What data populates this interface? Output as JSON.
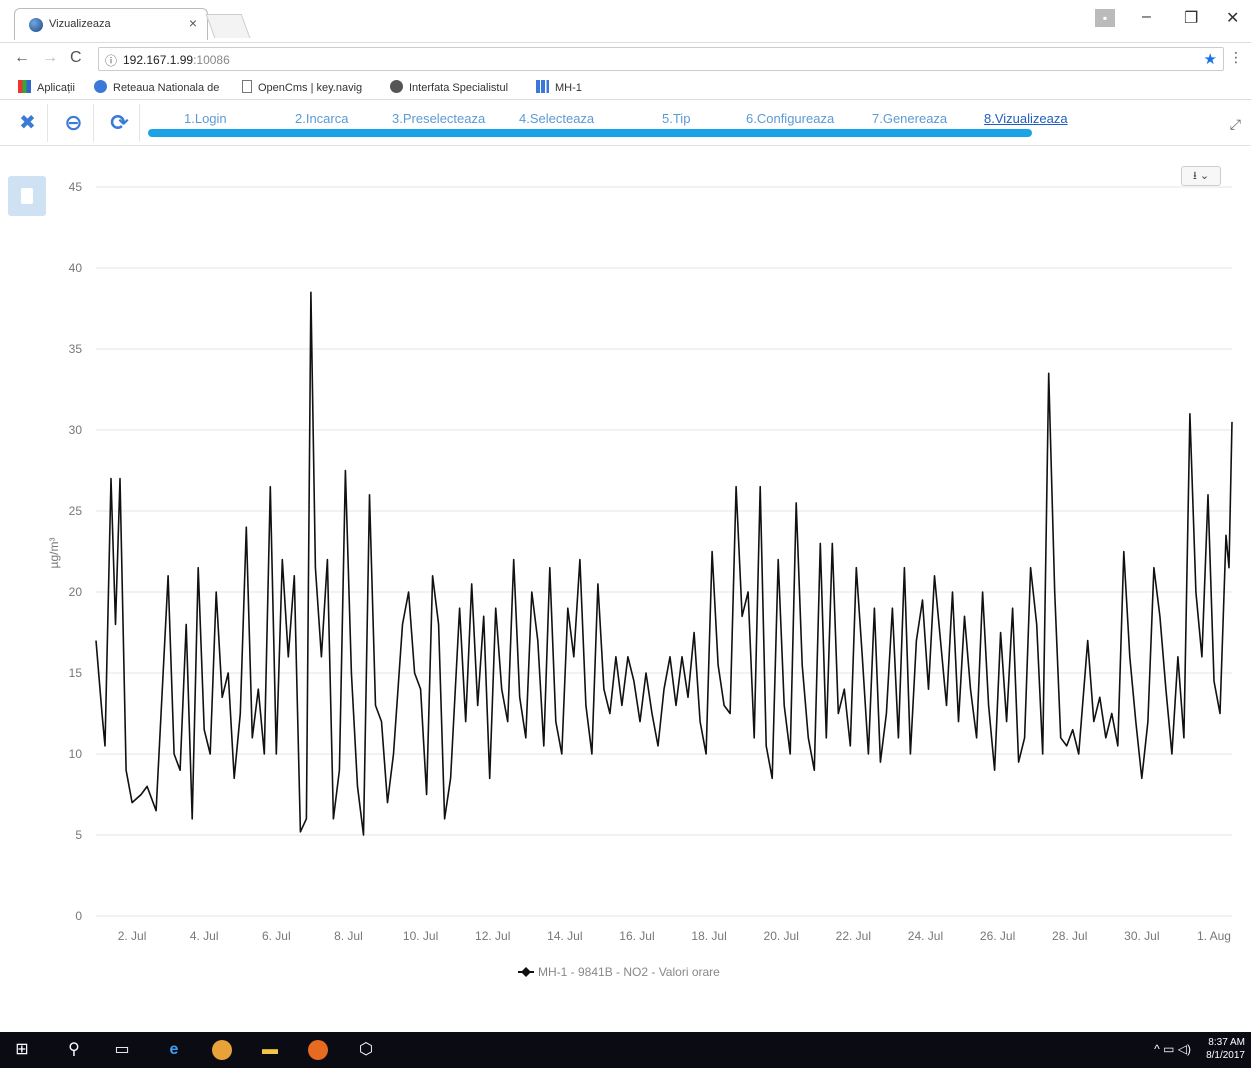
{
  "browser": {
    "tab_title": "Vizualizeaza",
    "tab_close": "×",
    "url_host": "192.167.1.99",
    "url_port": ":10086",
    "bookmarks": [
      {
        "label": "Aplicații",
        "icon": "apps-grid-icon"
      },
      {
        "label": "Reteaua Nationala de",
        "icon": "globe-icon"
      },
      {
        "label": "OpenCms | key.navig",
        "icon": "page-icon"
      },
      {
        "label": "Interfata Specialistul",
        "icon": "globe-icon"
      },
      {
        "label": "MH-1",
        "icon": "chart-icon"
      }
    ],
    "controls": {
      "minimize": "–",
      "restore": "❐",
      "close": "✕"
    }
  },
  "wizard": {
    "steps": [
      {
        "label": "1.Login"
      },
      {
        "label": "2.Incarca"
      },
      {
        "label": "3.Preselecteaza"
      },
      {
        "label": "4.Selecteaza"
      },
      {
        "label": "5.Tip"
      },
      {
        "label": "6.Configureaza"
      },
      {
        "label": "7.Genereaza"
      },
      {
        "label": "8.Vizualizeaza"
      }
    ],
    "active_step": 8
  },
  "export_label": "⭳ ⌄",
  "chart_data": {
    "type": "line",
    "ylabel": "µg/m³",
    "ylim": [
      0,
      45
    ],
    "yticks": [
      0,
      5,
      10,
      15,
      20,
      25,
      30,
      35,
      40,
      45
    ],
    "xlim": [
      "2017-07-01",
      "2017-08-01T12:00"
    ],
    "xticks": [
      "2. Jul",
      "4. Jul",
      "6. Jul",
      "8. Jul",
      "10. Jul",
      "12. Jul",
      "14. Jul",
      "16. Jul",
      "18. Jul",
      "20. Jul",
      "22. Jul",
      "24. Jul",
      "26. Jul",
      "28. Jul",
      "30. Jul",
      "1. Aug"
    ],
    "grid": true,
    "legend_position": "bottom-center",
    "series": [
      {
        "name": "MH-1 - 9841B - NO2 - Valori orare",
        "color": "#111111",
        "points": [
          [
            "2017-07-01T00:00",
            17.0
          ],
          [
            "2017-07-01T04:00",
            12.5
          ],
          [
            "2017-07-01T06:00",
            10.5
          ],
          [
            "2017-07-01T10:00",
            27.0
          ],
          [
            "2017-07-01T13:00",
            18.0
          ],
          [
            "2017-07-01T16:00",
            27.0
          ],
          [
            "2017-07-01T20:00",
            9.0
          ],
          [
            "2017-07-02T00:00",
            7.0
          ],
          [
            "2017-07-02T06:00",
            7.5
          ],
          [
            "2017-07-02T10:00",
            8.0
          ],
          [
            "2017-07-02T16:00",
            6.5
          ],
          [
            "2017-07-03T00:00",
            21.0
          ],
          [
            "2017-07-03T04:00",
            10.0
          ],
          [
            "2017-07-03T08:00",
            9.0
          ],
          [
            "2017-07-03T12:00",
            18.0
          ],
          [
            "2017-07-03T16:00",
            6.0
          ],
          [
            "2017-07-03T20:00",
            21.5
          ],
          [
            "2017-07-04T00:00",
            11.5
          ],
          [
            "2017-07-04T04:00",
            10.0
          ],
          [
            "2017-07-04T08:00",
            20.0
          ],
          [
            "2017-07-04T12:00",
            13.5
          ],
          [
            "2017-07-04T16:00",
            15.0
          ],
          [
            "2017-07-04T20:00",
            8.5
          ],
          [
            "2017-07-05T00:00",
            12.5
          ],
          [
            "2017-07-05T04:00",
            24.0
          ],
          [
            "2017-07-05T08:00",
            11.0
          ],
          [
            "2017-07-05T12:00",
            14.0
          ],
          [
            "2017-07-05T16:00",
            10.0
          ],
          [
            "2017-07-05T20:00",
            26.5
          ],
          [
            "2017-07-06T00:00",
            10.0
          ],
          [
            "2017-07-06T04:00",
            22.0
          ],
          [
            "2017-07-06T08:00",
            16.0
          ],
          [
            "2017-07-06T12:00",
            21.0
          ],
          [
            "2017-07-06T16:00",
            5.2
          ],
          [
            "2017-07-06T20:00",
            6.0
          ],
          [
            "2017-07-06T23:00",
            38.5
          ],
          [
            "2017-07-07T02:00",
            21.5
          ],
          [
            "2017-07-07T06:00",
            16.0
          ],
          [
            "2017-07-07T10:00",
            22.0
          ],
          [
            "2017-07-07T14:00",
            6.0
          ],
          [
            "2017-07-07T18:00",
            9.0
          ],
          [
            "2017-07-07T22:00",
            27.5
          ],
          [
            "2017-07-08T02:00",
            15.0
          ],
          [
            "2017-07-08T06:00",
            8.0
          ],
          [
            "2017-07-08T10:00",
            5.0
          ],
          [
            "2017-07-08T14:00",
            26.0
          ],
          [
            "2017-07-08T18:00",
            13.0
          ],
          [
            "2017-07-08T22:00",
            12.0
          ],
          [
            "2017-07-09T02:00",
            7.0
          ],
          [
            "2017-07-09T06:00",
            10.0
          ],
          [
            "2017-07-09T12:00",
            18.0
          ],
          [
            "2017-07-09T16:00",
            20.0
          ],
          [
            "2017-07-09T20:00",
            15.0
          ],
          [
            "2017-07-10T00:00",
            14.0
          ],
          [
            "2017-07-10T04:00",
            7.5
          ],
          [
            "2017-07-10T08:00",
            21.0
          ],
          [
            "2017-07-10T12:00",
            18.0
          ],
          [
            "2017-07-10T16:00",
            6.0
          ],
          [
            "2017-07-10T20:00",
            8.5
          ],
          [
            "2017-07-11T02:00",
            19.0
          ],
          [
            "2017-07-11T06:00",
            12.0
          ],
          [
            "2017-07-11T10:00",
            20.5
          ],
          [
            "2017-07-11T14:00",
            13.0
          ],
          [
            "2017-07-11T18:00",
            18.5
          ],
          [
            "2017-07-11T22:00",
            8.5
          ],
          [
            "2017-07-12T02:00",
            19.0
          ],
          [
            "2017-07-12T06:00",
            14.0
          ],
          [
            "2017-07-12T10:00",
            12.0
          ],
          [
            "2017-07-12T14:00",
            22.0
          ],
          [
            "2017-07-12T18:00",
            13.5
          ],
          [
            "2017-07-12T22:00",
            11.0
          ],
          [
            "2017-07-13T02:00",
            20.0
          ],
          [
            "2017-07-13T06:00",
            17.0
          ],
          [
            "2017-07-13T10:00",
            10.5
          ],
          [
            "2017-07-13T14:00",
            21.5
          ],
          [
            "2017-07-13T18:00",
            12.0
          ],
          [
            "2017-07-13T22:00",
            10.0
          ],
          [
            "2017-07-14T02:00",
            19.0
          ],
          [
            "2017-07-14T06:00",
            16.0
          ],
          [
            "2017-07-14T10:00",
            22.0
          ],
          [
            "2017-07-14T14:00",
            13.0
          ],
          [
            "2017-07-14T18:00",
            10.0
          ],
          [
            "2017-07-14T22:00",
            20.5
          ],
          [
            "2017-07-15T02:00",
            14.0
          ],
          [
            "2017-07-15T06:00",
            12.5
          ],
          [
            "2017-07-15T10:00",
            16.0
          ],
          [
            "2017-07-15T14:00",
            13.0
          ],
          [
            "2017-07-15T18:00",
            16.0
          ],
          [
            "2017-07-15T22:00",
            14.5
          ],
          [
            "2017-07-16T02:00",
            12.0
          ],
          [
            "2017-07-16T06:00",
            15.0
          ],
          [
            "2017-07-16T10:00",
            12.5
          ],
          [
            "2017-07-16T14:00",
            10.5
          ],
          [
            "2017-07-16T18:00",
            14.0
          ],
          [
            "2017-07-16T22:00",
            16.0
          ],
          [
            "2017-07-17T02:00",
            13.0
          ],
          [
            "2017-07-17T06:00",
            16.0
          ],
          [
            "2017-07-17T10:00",
            13.5
          ],
          [
            "2017-07-17T14:00",
            17.5
          ],
          [
            "2017-07-17T18:00",
            12.0
          ],
          [
            "2017-07-17T22:00",
            10.0
          ],
          [
            "2017-07-18T02:00",
            22.5
          ],
          [
            "2017-07-18T06:00",
            15.5
          ],
          [
            "2017-07-18T10:00",
            13.0
          ],
          [
            "2017-07-18T14:00",
            12.5
          ],
          [
            "2017-07-18T18:00",
            26.5
          ],
          [
            "2017-07-18T22:00",
            18.5
          ],
          [
            "2017-07-19T02:00",
            20.0
          ],
          [
            "2017-07-19T06:00",
            11.0
          ],
          [
            "2017-07-19T10:00",
            26.5
          ],
          [
            "2017-07-19T14:00",
            10.5
          ],
          [
            "2017-07-19T18:00",
            8.5
          ],
          [
            "2017-07-19T22:00",
            22.0
          ],
          [
            "2017-07-20T02:00",
            13.0
          ],
          [
            "2017-07-20T06:00",
            10.0
          ],
          [
            "2017-07-20T10:00",
            25.5
          ],
          [
            "2017-07-20T14:00",
            15.5
          ],
          [
            "2017-07-20T18:00",
            11.0
          ],
          [
            "2017-07-20T22:00",
            9.0
          ],
          [
            "2017-07-21T02:00",
            23.0
          ],
          [
            "2017-07-21T06:00",
            11.0
          ],
          [
            "2017-07-21T10:00",
            23.0
          ],
          [
            "2017-07-21T14:00",
            12.5
          ],
          [
            "2017-07-21T18:00",
            14.0
          ],
          [
            "2017-07-21T22:00",
            10.5
          ],
          [
            "2017-07-22T02:00",
            21.5
          ],
          [
            "2017-07-22T06:00",
            16.0
          ],
          [
            "2017-07-22T10:00",
            10.0
          ],
          [
            "2017-07-22T14:00",
            19.0
          ],
          [
            "2017-07-22T18:00",
            9.5
          ],
          [
            "2017-07-22T22:00",
            12.5
          ],
          [
            "2017-07-23T02:00",
            19.0
          ],
          [
            "2017-07-23T06:00",
            11.0
          ],
          [
            "2017-07-23T10:00",
            21.5
          ],
          [
            "2017-07-23T14:00",
            10.0
          ],
          [
            "2017-07-23T18:00",
            17.0
          ],
          [
            "2017-07-23T22:00",
            19.5
          ],
          [
            "2017-07-24T02:00",
            14.0
          ],
          [
            "2017-07-24T06:00",
            21.0
          ],
          [
            "2017-07-24T10:00",
            17.0
          ],
          [
            "2017-07-24T14:00",
            13.0
          ],
          [
            "2017-07-24T18:00",
            20.0
          ],
          [
            "2017-07-24T22:00",
            12.0
          ],
          [
            "2017-07-25T02:00",
            18.5
          ],
          [
            "2017-07-25T06:00",
            14.0
          ],
          [
            "2017-07-25T10:00",
            11.0
          ],
          [
            "2017-07-25T14:00",
            20.0
          ],
          [
            "2017-07-25T18:00",
            13.0
          ],
          [
            "2017-07-25T22:00",
            9.0
          ],
          [
            "2017-07-26T02:00",
            17.5
          ],
          [
            "2017-07-26T06:00",
            12.0
          ],
          [
            "2017-07-26T10:00",
            19.0
          ],
          [
            "2017-07-26T14:00",
            9.5
          ],
          [
            "2017-07-26T18:00",
            11.0
          ],
          [
            "2017-07-26T22:00",
            21.5
          ],
          [
            "2017-07-27T02:00",
            18.0
          ],
          [
            "2017-07-27T06:00",
            10.0
          ],
          [
            "2017-07-27T10:00",
            33.5
          ],
          [
            "2017-07-27T14:00",
            20.0
          ],
          [
            "2017-07-27T18:00",
            11.0
          ],
          [
            "2017-07-27T22:00",
            10.5
          ],
          [
            "2017-07-28T02:00",
            11.5
          ],
          [
            "2017-07-28T06:00",
            10.0
          ],
          [
            "2017-07-28T12:00",
            17.0
          ],
          [
            "2017-07-28T16:00",
            12.0
          ],
          [
            "2017-07-28T20:00",
            13.5
          ],
          [
            "2017-07-29T00:00",
            11.0
          ],
          [
            "2017-07-29T04:00",
            12.5
          ],
          [
            "2017-07-29T08:00",
            10.5
          ],
          [
            "2017-07-29T12:00",
            22.5
          ],
          [
            "2017-07-29T16:00",
            16.0
          ],
          [
            "2017-07-29T20:00",
            12.0
          ],
          [
            "2017-07-30T00:00",
            8.5
          ],
          [
            "2017-07-30T04:00",
            12.0
          ],
          [
            "2017-07-30T08:00",
            21.5
          ],
          [
            "2017-07-30T12:00",
            18.5
          ],
          [
            "2017-07-30T16:00",
            14.0
          ],
          [
            "2017-07-30T20:00",
            10.0
          ],
          [
            "2017-07-31T00:00",
            16.0
          ],
          [
            "2017-07-31T04:00",
            11.0
          ],
          [
            "2017-07-31T08:00",
            31.0
          ],
          [
            "2017-07-31T12:00",
            20.0
          ],
          [
            "2017-07-31T16:00",
            16.0
          ],
          [
            "2017-07-31T20:00",
            26.0
          ],
          [
            "2017-08-01T00:00",
            14.5
          ],
          [
            "2017-08-01T04:00",
            12.5
          ],
          [
            "2017-08-01T08:00",
            23.5
          ],
          [
            "2017-08-01T10:00",
            21.5
          ],
          [
            "2017-08-01T12:00",
            30.5
          ]
        ]
      }
    ]
  },
  "taskbar": {
    "time": "8:37 AM",
    "date": "8/1/2017"
  }
}
